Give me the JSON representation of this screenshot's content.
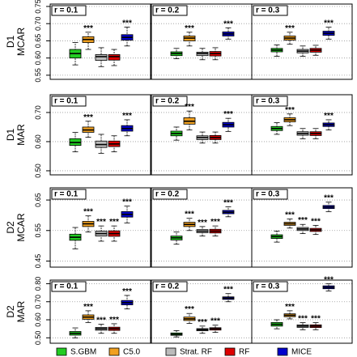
{
  "chart_data": {
    "type": "box",
    "methods": [
      {
        "name": "S.GBM",
        "color": "#22cc22"
      },
      {
        "name": "C5.0",
        "color": "#f0a020"
      },
      {
        "name": "Strat. RF",
        "color": "#bbbbbb"
      },
      {
        "name": "RF",
        "color": "#dd0000"
      },
      {
        "name": "MICE",
        "color": "#0000cc"
      }
    ],
    "grid": true,
    "rows": [
      {
        "label": [
          "D1",
          "MCAR"
        ],
        "ylim": [
          0.538,
          0.757
        ],
        "yticks": [
          0.55,
          {
            "value": 0.6,
            "label": "0.60"
          },
          0.65,
          {
            "value": 0.7,
            "label": "0.70"
          },
          0.75
        ],
        "panels": [
          {
            "label": "r = 0.1",
            "stars": [
              null,
              "***",
              null,
              null,
              "***"
            ],
            "boxes": [
              {
                "min": 0.58,
                "q1": 0.6,
                "median": 0.613,
                "q3": 0.625,
                "max": 0.645
              },
              {
                "min": 0.625,
                "q1": 0.645,
                "median": 0.654,
                "q3": 0.662,
                "max": 0.675
              },
              {
                "min": 0.575,
                "q1": 0.593,
                "median": 0.604,
                "q3": 0.61,
                "max": 0.63
              },
              {
                "min": 0.578,
                "q1": 0.594,
                "median": 0.604,
                "q3": 0.61,
                "max": 0.625
              },
              {
                "min": 0.635,
                "q1": 0.652,
                "median": 0.66,
                "q3": 0.668,
                "max": 0.69
              }
            ]
          },
          {
            "label": "r = 0.2",
            "stars": [
              null,
              "***",
              null,
              null,
              "***"
            ],
            "boxes": [
              {
                "min": 0.598,
                "q1": 0.607,
                "median": 0.613,
                "q3": 0.618,
                "max": 0.628
              },
              {
                "min": 0.635,
                "q1": 0.65,
                "median": 0.658,
                "q3": 0.664,
                "max": 0.675
              },
              {
                "min": 0.595,
                "q1": 0.607,
                "median": 0.613,
                "q3": 0.617,
                "max": 0.628
              },
              {
                "min": 0.595,
                "q1": 0.606,
                "median": 0.613,
                "q3": 0.619,
                "max": 0.63
              },
              {
                "min": 0.655,
                "q1": 0.664,
                "median": 0.67,
                "q3": 0.676,
                "max": 0.688
              }
            ]
          },
          {
            "label": "r = 0.3",
            "stars": [
              null,
              "***",
              null,
              null,
              "***"
            ],
            "boxes": [
              {
                "min": 0.605,
                "q1": 0.618,
                "median": 0.623,
                "q3": 0.628,
                "max": 0.638
              },
              {
                "min": 0.64,
                "q1": 0.652,
                "median": 0.658,
                "q3": 0.664,
                "max": 0.675
              },
              {
                "min": 0.605,
                "q1": 0.615,
                "median": 0.62,
                "q3": 0.625,
                "max": 0.635
              },
              {
                "min": 0.608,
                "q1": 0.617,
                "median": 0.623,
                "q3": 0.628,
                "max": 0.637
              },
              {
                "min": 0.655,
                "q1": 0.666,
                "median": 0.672,
                "q3": 0.678,
                "max": 0.69
              }
            ]
          }
        ]
      },
      {
        "label": [
          "D1",
          "MAR"
        ],
        "ylim": [
          0.486,
          0.761
        ],
        "yticks": [
          {
            "value": 0.5,
            "label": "0.50"
          },
          {
            "value": 0.6,
            "label": "0.60"
          },
          {
            "value": 0.7,
            "label": "0.70"
          }
        ],
        "panels": [
          {
            "label": "r = 0.1",
            "stars": [
              null,
              "***",
              null,
              null,
              "***"
            ],
            "boxes": [
              {
                "min": 0.565,
                "q1": 0.587,
                "median": 0.597,
                "q3": 0.61,
                "max": 0.632
              },
              {
                "min": 0.615,
                "q1": 0.632,
                "median": 0.64,
                "q3": 0.65,
                "max": 0.67
              },
              {
                "min": 0.56,
                "q1": 0.58,
                "median": 0.59,
                "q3": 0.602,
                "max": 0.625
              },
              {
                "min": 0.565,
                "q1": 0.583,
                "median": 0.592,
                "q3": 0.602,
                "max": 0.62
              },
              {
                "min": 0.62,
                "q1": 0.636,
                "median": 0.645,
                "q3": 0.655,
                "max": 0.675
              }
            ]
          },
          {
            "label": "r = 0.2",
            "stars": [
              null,
              "***",
              null,
              null,
              "***"
            ],
            "boxes": [
              {
                "min": 0.605,
                "q1": 0.62,
                "median": 0.628,
                "q3": 0.636,
                "max": 0.65
              },
              {
                "min": 0.64,
                "q1": 0.66,
                "median": 0.67,
                "q3": 0.682,
                "max": 0.705
              },
              {
                "min": 0.595,
                "q1": 0.607,
                "median": 0.614,
                "q3": 0.62,
                "max": 0.633
              },
              {
                "min": 0.595,
                "q1": 0.607,
                "median": 0.614,
                "q3": 0.621,
                "max": 0.633
              },
              {
                "min": 0.635,
                "q1": 0.65,
                "median": 0.658,
                "q3": 0.666,
                "max": 0.68
              }
            ]
          },
          {
            "label": "r = 0.3",
            "stars": [
              null,
              "***",
              null,
              null,
              "***"
            ],
            "boxes": [
              {
                "min": 0.625,
                "q1": 0.638,
                "median": 0.645,
                "q3": 0.652,
                "max": 0.665
              },
              {
                "min": 0.655,
                "q1": 0.668,
                "median": 0.675,
                "q3": 0.682,
                "max": 0.695
              },
              {
                "min": 0.61,
                "q1": 0.622,
                "median": 0.628,
                "q3": 0.634,
                "max": 0.645
              },
              {
                "min": 0.61,
                "q1": 0.621,
                "median": 0.628,
                "q3": 0.634,
                "max": 0.645
              },
              {
                "min": 0.64,
                "q1": 0.652,
                "median": 0.658,
                "q3": 0.664,
                "max": 0.675
              }
            ]
          }
        ]
      },
      {
        "label": [
          "D2",
          "MCAR"
        ],
        "ylim": [
          0.43,
          0.69
        ],
        "yticks": [
          0.45,
          0.55,
          0.65
        ],
        "panels": [
          {
            "label": "r = 0.1",
            "stars": [
              null,
              "***",
              "***",
              "***",
              "***"
            ],
            "boxes": [
              {
                "min": 0.49,
                "q1": 0.518,
                "median": 0.528,
                "q3": 0.538,
                "max": 0.56
              },
              {
                "min": 0.545,
                "q1": 0.563,
                "median": 0.572,
                "q3": 0.58,
                "max": 0.598
              },
              {
                "min": 0.515,
                "q1": 0.532,
                "median": 0.54,
                "q3": 0.548,
                "max": 0.565
              },
              {
                "min": 0.515,
                "q1": 0.531,
                "median": 0.54,
                "q3": 0.549,
                "max": 0.565
              },
              {
                "min": 0.575,
                "q1": 0.594,
                "median": 0.603,
                "q3": 0.612,
                "max": 0.63
              }
            ]
          },
          {
            "label": "r = 0.2",
            "stars": [
              null,
              "***",
              "***",
              "***",
              "***"
            ],
            "boxes": [
              {
                "min": 0.505,
                "q1": 0.519,
                "median": 0.526,
                "q3": 0.532,
                "max": 0.545
              },
              {
                "min": 0.55,
                "q1": 0.563,
                "median": 0.57,
                "q3": 0.577,
                "max": 0.59
              },
              {
                "min": 0.532,
                "q1": 0.543,
                "median": 0.548,
                "q3": 0.553,
                "max": 0.563
              },
              {
                "min": 0.532,
                "q1": 0.542,
                "median": 0.548,
                "q3": 0.554,
                "max": 0.565
              },
              {
                "min": 0.595,
                "q1": 0.605,
                "median": 0.61,
                "q3": 0.616,
                "max": 0.628
              }
            ]
          },
          {
            "label": "r = 0.3",
            "stars": [
              null,
              "***",
              "***",
              "***",
              "***"
            ],
            "boxes": [
              {
                "min": 0.512,
                "q1": 0.524,
                "median": 0.53,
                "q3": 0.536,
                "max": 0.548
              },
              {
                "min": 0.558,
                "q1": 0.567,
                "median": 0.572,
                "q3": 0.577,
                "max": 0.588
              },
              {
                "min": 0.54,
                "q1": 0.55,
                "median": 0.555,
                "q3": 0.56,
                "max": 0.57
              },
              {
                "min": 0.537,
                "q1": 0.547,
                "median": 0.552,
                "q3": 0.557,
                "max": 0.567
              },
              {
                "min": 0.612,
                "q1": 0.622,
                "median": 0.627,
                "q3": 0.632,
                "max": 0.643
              }
            ]
          }
        ]
      },
      {
        "label": [
          "D2",
          "MAR"
        ],
        "ylim": [
          0.47,
          0.82
        ],
        "yticks": [
          {
            "value": 0.5,
            "label": "0.50"
          },
          {
            "value": 0.6,
            "label": "0.60"
          },
          {
            "value": 0.7,
            "label": "0.70"
          },
          {
            "value": 0.8,
            "label": "0.80"
          }
        ],
        "panels": [
          {
            "label": "r = 0.1",
            "stars": [
              null,
              "***",
              "***",
              "***",
              "***"
            ],
            "boxes": [
              {
                "min": 0.5,
                "q1": 0.515,
                "median": 0.525,
                "q3": 0.535,
                "max": 0.555
              },
              {
                "min": 0.585,
                "q1": 0.603,
                "median": 0.615,
                "q3": 0.627,
                "max": 0.65
              },
              {
                "min": 0.525,
                "q1": 0.542,
                "median": 0.55,
                "q3": 0.558,
                "max": 0.575
              },
              {
                "min": 0.525,
                "q1": 0.541,
                "median": 0.55,
                "q3": 0.559,
                "max": 0.578
              },
              {
                "min": 0.66,
                "q1": 0.683,
                "median": 0.695,
                "q3": 0.707,
                "max": 0.735
              }
            ]
          },
          {
            "label": "r = 0.2",
            "stars": [
              null,
              "***",
              "***",
              "***",
              "***"
            ],
            "boxes": [
              {
                "min": 0.505,
                "q1": 0.514,
                "median": 0.52,
                "q3": 0.527,
                "max": 0.54
              },
              {
                "min": 0.58,
                "q1": 0.596,
                "median": 0.605,
                "q3": 0.615,
                "max": 0.635
              },
              {
                "min": 0.525,
                "q1": 0.539,
                "median": 0.545,
                "q3": 0.551,
                "max": 0.565
              },
              {
                "min": 0.53,
                "q1": 0.543,
                "median": 0.55,
                "q3": 0.556,
                "max": 0.57
              },
              {
                "min": 0.7,
                "q1": 0.713,
                "median": 0.72,
                "q3": 0.727,
                "max": 0.745
              }
            ]
          },
          {
            "label": "r = 0.3",
            "stars": [
              null,
              "***",
              "***",
              "***",
              "***"
            ],
            "boxes": [
              {
                "min": 0.55,
                "q1": 0.565,
                "median": 0.575,
                "q3": 0.585,
                "max": 0.6
              },
              {
                "min": 0.605,
                "q1": 0.617,
                "median": 0.625,
                "q3": 0.633,
                "max": 0.65
              },
              {
                "min": 0.545,
                "q1": 0.558,
                "median": 0.565,
                "q3": 0.572,
                "max": 0.585
              },
              {
                "min": 0.545,
                "q1": 0.557,
                "median": 0.565,
                "q3": 0.572,
                "max": 0.585
              },
              {
                "min": 0.76,
                "q1": 0.772,
                "median": 0.78,
                "q3": 0.788,
                "max": 0.8
              }
            ]
          }
        ]
      }
    ]
  }
}
